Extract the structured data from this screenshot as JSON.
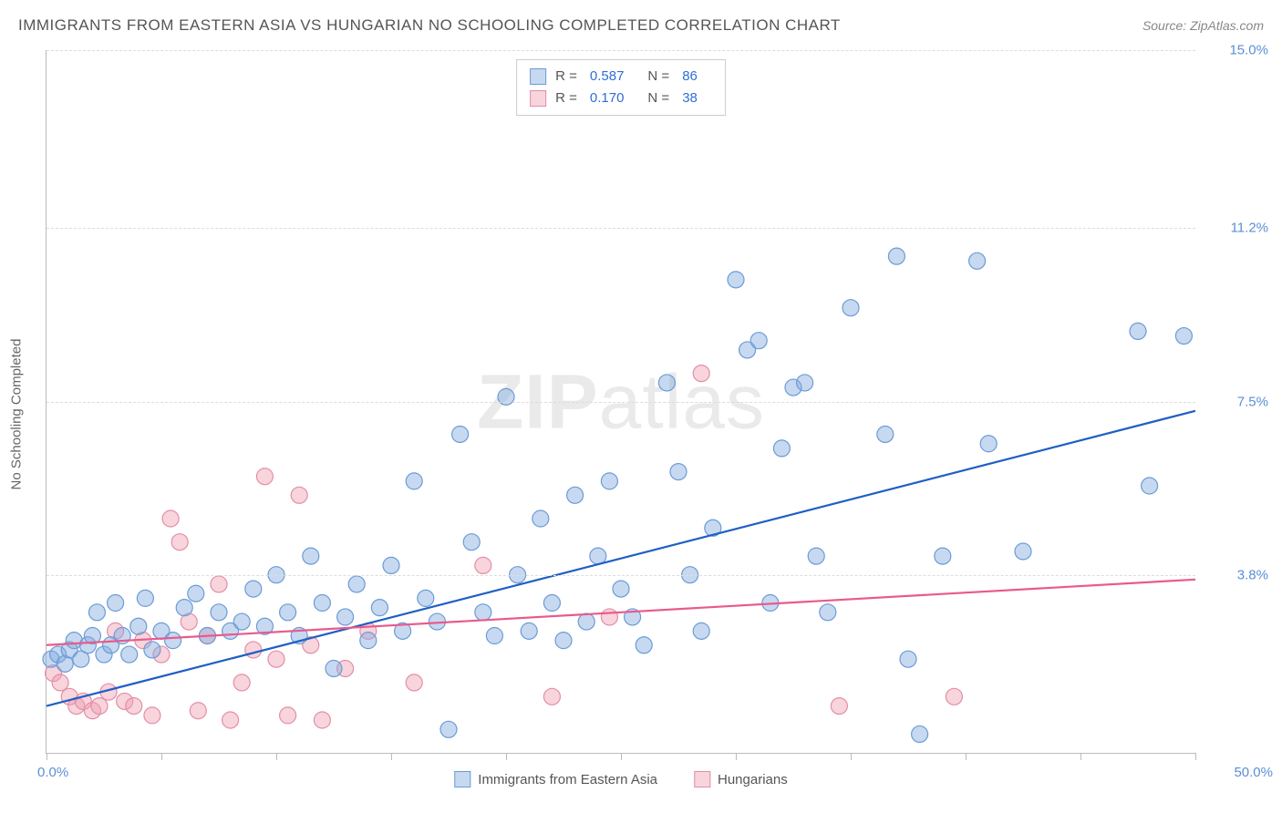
{
  "title": "IMMIGRANTS FROM EASTERN ASIA VS HUNGARIAN NO SCHOOLING COMPLETED CORRELATION CHART",
  "source_prefix": "Source: ",
  "source_name": "ZipAtlas.com",
  "y_axis_label": "No Schooling Completed",
  "watermark_bold": "ZIP",
  "watermark_light": "atlas",
  "chart": {
    "type": "scatter-with-regression",
    "background_color": "#ffffff",
    "grid_color": "#dddddd",
    "axis_color": "#bbbbbb",
    "tick_label_color": "#5a8fd6",
    "xlim": [
      0,
      50
    ],
    "ylim": [
      0,
      15
    ],
    "x_tick_positions": [
      0,
      5,
      10,
      15,
      20,
      25,
      30,
      35,
      40,
      45,
      50
    ],
    "y_grid_positions": [
      3.8,
      7.5,
      11.2,
      15.0
    ],
    "y_tick_labels": [
      "3.8%",
      "7.5%",
      "11.2%",
      "15.0%"
    ],
    "x_min_label": "0.0%",
    "x_max_label": "50.0%",
    "marker_radius": 9,
    "marker_stroke_width": 1.2,
    "regression_line_width": 2.2,
    "series": [
      {
        "name": "Immigrants from Eastern Asia",
        "color_fill": "rgba(130,170,222,0.45)",
        "color_stroke": "#6b9bd6",
        "line_color": "#1f5fc4",
        "R": "0.587",
        "N": "86",
        "regression": {
          "x1": 0,
          "y1": 1.0,
          "x2": 50,
          "y2": 7.3
        },
        "points": [
          [
            0.2,
            2.0
          ],
          [
            0.5,
            2.1
          ],
          [
            0.8,
            1.9
          ],
          [
            1.0,
            2.2
          ],
          [
            1.2,
            2.4
          ],
          [
            1.5,
            2.0
          ],
          [
            1.8,
            2.3
          ],
          [
            2.0,
            2.5
          ],
          [
            2.2,
            3.0
          ],
          [
            2.5,
            2.1
          ],
          [
            2.8,
            2.3
          ],
          [
            3.0,
            3.2
          ],
          [
            3.3,
            2.5
          ],
          [
            3.6,
            2.1
          ],
          [
            4.0,
            2.7
          ],
          [
            4.3,
            3.3
          ],
          [
            4.6,
            2.2
          ],
          [
            5.0,
            2.6
          ],
          [
            5.5,
            2.4
          ],
          [
            6.0,
            3.1
          ],
          [
            6.5,
            3.4
          ],
          [
            7.0,
            2.5
          ],
          [
            7.5,
            3.0
          ],
          [
            8.0,
            2.6
          ],
          [
            8.5,
            2.8
          ],
          [
            9.0,
            3.5
          ],
          [
            9.5,
            2.7
          ],
          [
            10.0,
            3.8
          ],
          [
            10.5,
            3.0
          ],
          [
            11.0,
            2.5
          ],
          [
            11.5,
            4.2
          ],
          [
            12.0,
            3.2
          ],
          [
            12.5,
            1.8
          ],
          [
            13.0,
            2.9
          ],
          [
            13.5,
            3.6
          ],
          [
            14.0,
            2.4
          ],
          [
            14.5,
            3.1
          ],
          [
            15.0,
            4.0
          ],
          [
            15.5,
            2.6
          ],
          [
            16.0,
            5.8
          ],
          [
            16.5,
            3.3
          ],
          [
            17.0,
            2.8
          ],
          [
            17.5,
            0.5
          ],
          [
            18.0,
            6.8
          ],
          [
            18.5,
            4.5
          ],
          [
            19.0,
            3.0
          ],
          [
            19.5,
            2.5
          ],
          [
            20.0,
            7.6
          ],
          [
            20.5,
            3.8
          ],
          [
            21.0,
            2.6
          ],
          [
            21.5,
            5.0
          ],
          [
            22.0,
            3.2
          ],
          [
            22.5,
            2.4
          ],
          [
            23.0,
            5.5
          ],
          [
            23.5,
            2.8
          ],
          [
            24.0,
            4.2
          ],
          [
            24.5,
            5.8
          ],
          [
            25.0,
            3.5
          ],
          [
            25.5,
            2.9
          ],
          [
            26.0,
            2.3
          ],
          [
            27.0,
            7.9
          ],
          [
            27.5,
            6.0
          ],
          [
            28.0,
            3.8
          ],
          [
            28.5,
            2.6
          ],
          [
            29.0,
            4.8
          ],
          [
            30.0,
            10.1
          ],
          [
            30.5,
            8.6
          ],
          [
            31.0,
            8.8
          ],
          [
            31.5,
            3.2
          ],
          [
            32.0,
            6.5
          ],
          [
            32.5,
            7.8
          ],
          [
            33.0,
            7.9
          ],
          [
            33.5,
            4.2
          ],
          [
            34.0,
            3.0
          ],
          [
            35.0,
            9.5
          ],
          [
            36.5,
            6.8
          ],
          [
            37.0,
            10.6
          ],
          [
            37.5,
            2.0
          ],
          [
            38.0,
            0.4
          ],
          [
            39.0,
            4.2
          ],
          [
            40.5,
            10.5
          ],
          [
            41.0,
            6.6
          ],
          [
            42.5,
            4.3
          ],
          [
            47.5,
            9.0
          ],
          [
            48.0,
            5.7
          ],
          [
            49.5,
            8.9
          ]
        ]
      },
      {
        "name": "Hungarians",
        "color_fill": "rgba(240,160,180,0.45)",
        "color_stroke": "#e28fa6",
        "line_color": "#e95a8c",
        "R": "0.170",
        "N": "38",
        "regression": {
          "x1": 0,
          "y1": 2.3,
          "x2": 50,
          "y2": 3.7
        },
        "points": [
          [
            0.3,
            1.7
          ],
          [
            0.6,
            1.5
          ],
          [
            1.0,
            1.2
          ],
          [
            1.3,
            1.0
          ],
          [
            1.6,
            1.1
          ],
          [
            2.0,
            0.9
          ],
          [
            2.3,
            1.0
          ],
          [
            2.7,
            1.3
          ],
          [
            3.0,
            2.6
          ],
          [
            3.4,
            1.1
          ],
          [
            3.8,
            1.0
          ],
          [
            4.2,
            2.4
          ],
          [
            4.6,
            0.8
          ],
          [
            5.0,
            2.1
          ],
          [
            5.4,
            5.0
          ],
          [
            5.8,
            4.5
          ],
          [
            6.2,
            2.8
          ],
          [
            6.6,
            0.9
          ],
          [
            7.0,
            2.5
          ],
          [
            7.5,
            3.6
          ],
          [
            8.0,
            0.7
          ],
          [
            8.5,
            1.5
          ],
          [
            9.0,
            2.2
          ],
          [
            9.5,
            5.9
          ],
          [
            10.0,
            2.0
          ],
          [
            10.5,
            0.8
          ],
          [
            11.0,
            5.5
          ],
          [
            11.5,
            2.3
          ],
          [
            12.0,
            0.7
          ],
          [
            13.0,
            1.8
          ],
          [
            14.0,
            2.6
          ],
          [
            16.0,
            1.5
          ],
          [
            19.0,
            4.0
          ],
          [
            22.0,
            1.2
          ],
          [
            24.5,
            2.9
          ],
          [
            28.5,
            8.1
          ],
          [
            34.5,
            1.0
          ],
          [
            39.5,
            1.2
          ]
        ]
      }
    ]
  },
  "legend_top": {
    "r_label": "R =",
    "n_label": "N ="
  },
  "legend_bottom": {
    "series1_label": "Immigrants from Eastern Asia",
    "series2_label": "Hungarians"
  }
}
